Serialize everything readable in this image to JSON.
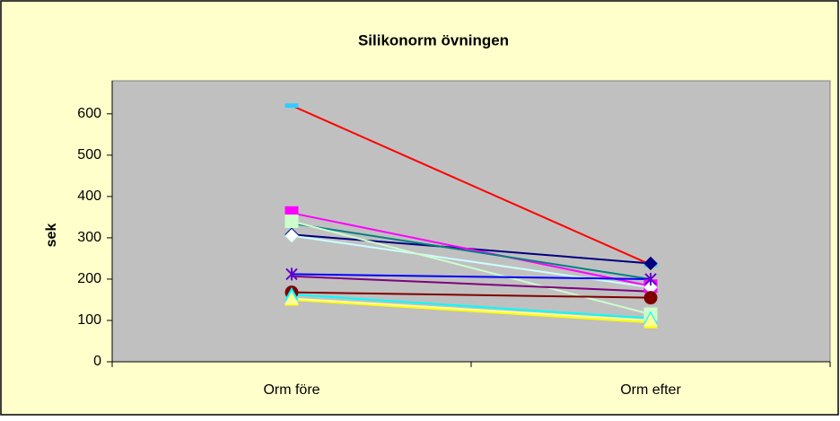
{
  "chart_data": {
    "type": "line",
    "title": "Silikonorm övningen",
    "y_label": "sek",
    "categories": [
      "Orm före",
      "Orm efter"
    ],
    "ylim": [
      0,
      680
    ],
    "yticks": [
      0,
      100,
      200,
      300,
      400,
      500,
      600
    ],
    "plot_background": "#c0c0c0",
    "background": "#ffffcc",
    "series": [
      {
        "color": "#ff0000",
        "marker": "dash",
        "marker_color": "#33ccff",
        "values": [
          620,
          235
        ]
      },
      {
        "color": "#000080",
        "marker": "diamond",
        "marker_color": "#000080",
        "values": [
          308,
          238
        ]
      },
      {
        "color": "#ff00ff",
        "marker": "square",
        "marker_color": "#ff00ff",
        "values": [
          360,
          183
        ]
      },
      {
        "color": "#008080",
        "marker": "none",
        "marker_color": "#008080",
        "values": [
          335,
          200
        ]
      },
      {
        "color": "#ccffff",
        "marker": "diamond",
        "marker_color": "#ffffff",
        "values": [
          305,
          180
        ]
      },
      {
        "color": "#ccffcc",
        "marker": "square",
        "marker_color": "#ccffcc",
        "values": [
          340,
          115
        ]
      },
      {
        "color": "#0000ff",
        "marker": "star",
        "marker_color": "#6600cc",
        "values": [
          212,
          200
        ]
      },
      {
        "color": "#800080",
        "marker": "none",
        "marker_color": "#800080",
        "values": [
          207,
          170
        ]
      },
      {
        "color": "#800000",
        "marker": "circle",
        "marker_color": "#800000",
        "values": [
          168,
          155
        ]
      },
      {
        "color": "#00ffff",
        "marker": "triangle",
        "marker_color": "#00ffff",
        "values": [
          163,
          105
        ]
      },
      {
        "color": "#ffff00",
        "marker": "triangle",
        "marker_color": "#ffff00",
        "values": [
          150,
          95
        ]
      },
      {
        "color": "#ffff99",
        "marker": "triangle",
        "marker_color": "#ffff99",
        "values": [
          153,
          100
        ]
      }
    ]
  }
}
